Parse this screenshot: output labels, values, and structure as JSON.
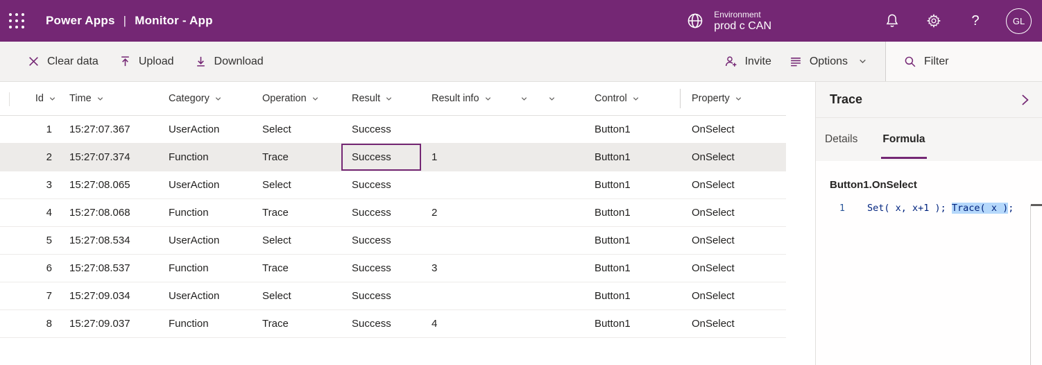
{
  "topbar": {
    "app_name": "Power Apps",
    "divider": "|",
    "page_name": "Monitor - App",
    "environment": {
      "label": "Environment",
      "name": "prod c CAN"
    },
    "help_label": "?",
    "avatar_initials": "GL"
  },
  "toolbar": {
    "clear_data_label": "Clear data",
    "upload_label": "Upload",
    "download_label": "Download",
    "invite_label": "Invite",
    "options_label": "Options",
    "filter_label": "Filter"
  },
  "table": {
    "columns": [
      {
        "key": "id",
        "label": "Id"
      },
      {
        "key": "time",
        "label": "Time"
      },
      {
        "key": "category",
        "label": "Category"
      },
      {
        "key": "operation",
        "label": "Operation"
      },
      {
        "key": "result",
        "label": "Result"
      },
      {
        "key": "result_info",
        "label": "Result info"
      },
      {
        "key": "extra1",
        "label": ""
      },
      {
        "key": "extra2",
        "label": ""
      },
      {
        "key": "control",
        "label": "Control"
      },
      {
        "key": "property",
        "label": "Property"
      }
    ],
    "selected_row_id": "2",
    "focused_cell": {
      "row_id": "2",
      "column": "result"
    },
    "rows": [
      {
        "id": "1",
        "time": "15:27:07.367",
        "category": "UserAction",
        "operation": "Select",
        "result": "Success",
        "result_info": "",
        "control": "Button1",
        "property": "OnSelect"
      },
      {
        "id": "2",
        "time": "15:27:07.374",
        "category": "Function",
        "operation": "Trace",
        "result": "Success",
        "result_info": "1",
        "control": "Button1",
        "property": "OnSelect"
      },
      {
        "id": "3",
        "time": "15:27:08.065",
        "category": "UserAction",
        "operation": "Select",
        "result": "Success",
        "result_info": "",
        "control": "Button1",
        "property": "OnSelect"
      },
      {
        "id": "4",
        "time": "15:27:08.068",
        "category": "Function",
        "operation": "Trace",
        "result": "Success",
        "result_info": "2",
        "control": "Button1",
        "property": "OnSelect"
      },
      {
        "id": "5",
        "time": "15:27:08.534",
        "category": "UserAction",
        "operation": "Select",
        "result": "Success",
        "result_info": "",
        "control": "Button1",
        "property": "OnSelect"
      },
      {
        "id": "6",
        "time": "15:27:08.537",
        "category": "Function",
        "operation": "Trace",
        "result": "Success",
        "result_info": "3",
        "control": "Button1",
        "property": "OnSelect"
      },
      {
        "id": "7",
        "time": "15:27:09.034",
        "category": "UserAction",
        "operation": "Select",
        "result": "Success",
        "result_info": "",
        "control": "Button1",
        "property": "OnSelect"
      },
      {
        "id": "8",
        "time": "15:27:09.037",
        "category": "Function",
        "operation": "Trace",
        "result": "Success",
        "result_info": "4",
        "control": "Button1",
        "property": "OnSelect"
      }
    ]
  },
  "panel": {
    "title": "Trace",
    "tabs": [
      {
        "id": "details",
        "label": "Details",
        "active": false
      },
      {
        "id": "formula",
        "label": "Formula",
        "active": true
      }
    ],
    "formula": {
      "property_title": "Button1.OnSelect",
      "line_number": "1",
      "code_before_highlight": "Set( x, x+1 ); ",
      "code_highlighted": "Trace( x )",
      "code_after_highlight": ";"
    }
  },
  "icons": {
    "waffle": "waffle-menu-icon",
    "globe": "environment-globe-icon",
    "bell": "notifications-bell-icon",
    "gear": "settings-gear-icon",
    "clear": "close-x-icon",
    "upload": "upload-arrow-icon",
    "download": "download-arrow-icon",
    "invite": "person-add-icon",
    "options": "list-lines-icon",
    "chevron": "chevron-down-icon",
    "filter": "search-magnifier-icon",
    "expand": "chevron-right-icon"
  },
  "colors": {
    "brand_purple": "#742774",
    "toolbar_bg": "#f3f2f1",
    "selected_row_bg": "#edebe9",
    "focus_border": "#742774",
    "code_highlight_bg": "#b5d8fb",
    "code_text": "#00237e"
  }
}
